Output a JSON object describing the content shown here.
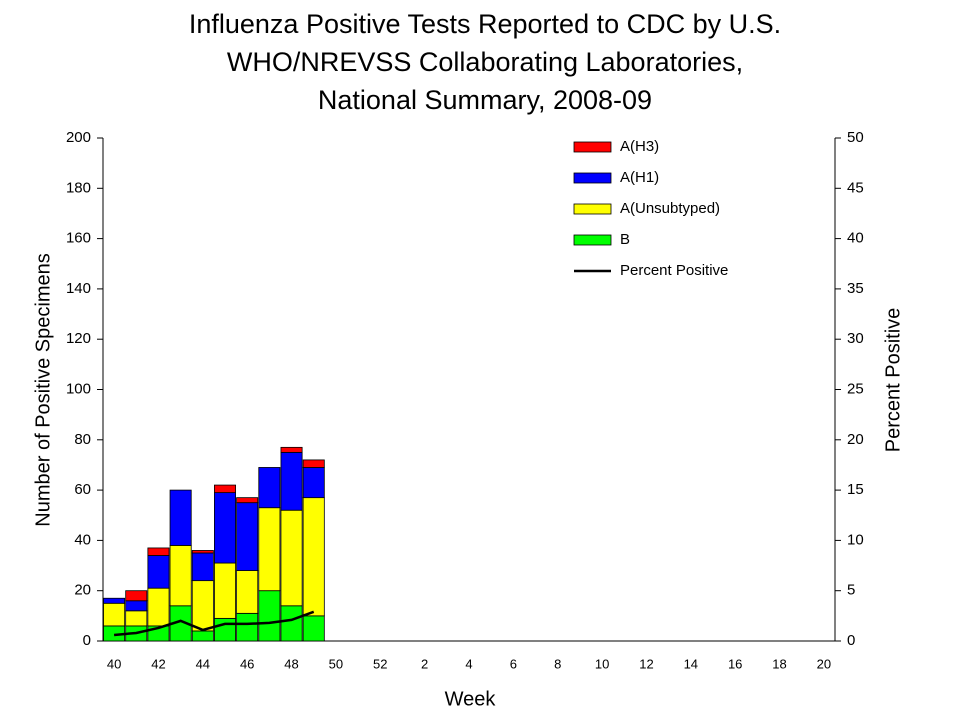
{
  "chart_data": {
    "type": "bar",
    "title": [
      "Influenza Positive Tests Reported to CDC by U.S.",
      "WHO/NREVSS Collaborating Laboratories,",
      "National Summary, 2008-09"
    ],
    "x_label": "Week",
    "y_label": "Number of Positive Specimens",
    "y2_label": "Percent Positive",
    "categories": [
      40,
      null,
      42,
      null,
      44,
      null,
      46,
      null,
      48,
      null,
      50,
      null,
      52,
      null,
      2,
      null,
      4,
      null,
      6,
      null,
      8,
      null,
      10,
      null,
      12,
      null,
      14,
      null,
      16,
      null,
      18,
      null,
      20
    ],
    "stacked": true,
    "series": [
      {
        "name": "B",
        "type": "bar",
        "color": "#00ff00",
        "values": [
          6,
          6,
          6,
          14,
          4,
          9,
          11,
          20,
          14,
          10,
          null,
          null,
          null,
          null,
          null,
          null,
          null,
          null,
          null,
          null,
          null,
          null,
          null,
          null,
          null,
          null,
          null,
          null,
          null,
          null,
          null,
          null,
          null
        ]
      },
      {
        "name": "A(Unsubtyped)",
        "type": "bar",
        "color": "#ffff00",
        "values": [
          9,
          6,
          15,
          24,
          20,
          22,
          17,
          33,
          38,
          47,
          null,
          null,
          null,
          null,
          null,
          null,
          null,
          null,
          null,
          null,
          null,
          null,
          null,
          null,
          null,
          null,
          null,
          null,
          null,
          null,
          null,
          null,
          null
        ]
      },
      {
        "name": "A(H1)",
        "type": "bar",
        "color": "#0000ff",
        "values": [
          2,
          4,
          13,
          22,
          11,
          28,
          27,
          16,
          23,
          12,
          null,
          null,
          null,
          null,
          null,
          null,
          null,
          null,
          null,
          null,
          null,
          null,
          null,
          null,
          null,
          null,
          null,
          null,
          null,
          null,
          null,
          null,
          null
        ]
      },
      {
        "name": "A(H3)",
        "type": "bar",
        "color": "#ff0000",
        "values": [
          0,
          4,
          3,
          0,
          1,
          3,
          2,
          0,
          2,
          3,
          null,
          null,
          null,
          null,
          null,
          null,
          null,
          null,
          null,
          null,
          null,
          null,
          null,
          null,
          null,
          null,
          null,
          null,
          null,
          null,
          null,
          null,
          null
        ]
      },
      {
        "name": "Percent Positive",
        "type": "line",
        "axis": "y2",
        "color": "#000000",
        "values": [
          0.6,
          0.8,
          1.3,
          2.0,
          1.1,
          1.7,
          1.7,
          1.8,
          2.1,
          2.9,
          null,
          null,
          null,
          null,
          null,
          null,
          null,
          null,
          null,
          null,
          null,
          null,
          null,
          null,
          null,
          null,
          null,
          null,
          null,
          null,
          null,
          null,
          null
        ]
      }
    ],
    "ylim": [
      0,
      200
    ],
    "yticks": [
      0,
      20,
      40,
      60,
      80,
      100,
      120,
      140,
      160,
      180,
      200
    ],
    "y2lim": [
      0,
      50
    ],
    "y2ticks": [
      0,
      5,
      10,
      15,
      20,
      25,
      30,
      35,
      40,
      45,
      50
    ],
    "grid": false,
    "legend": "upper right"
  }
}
